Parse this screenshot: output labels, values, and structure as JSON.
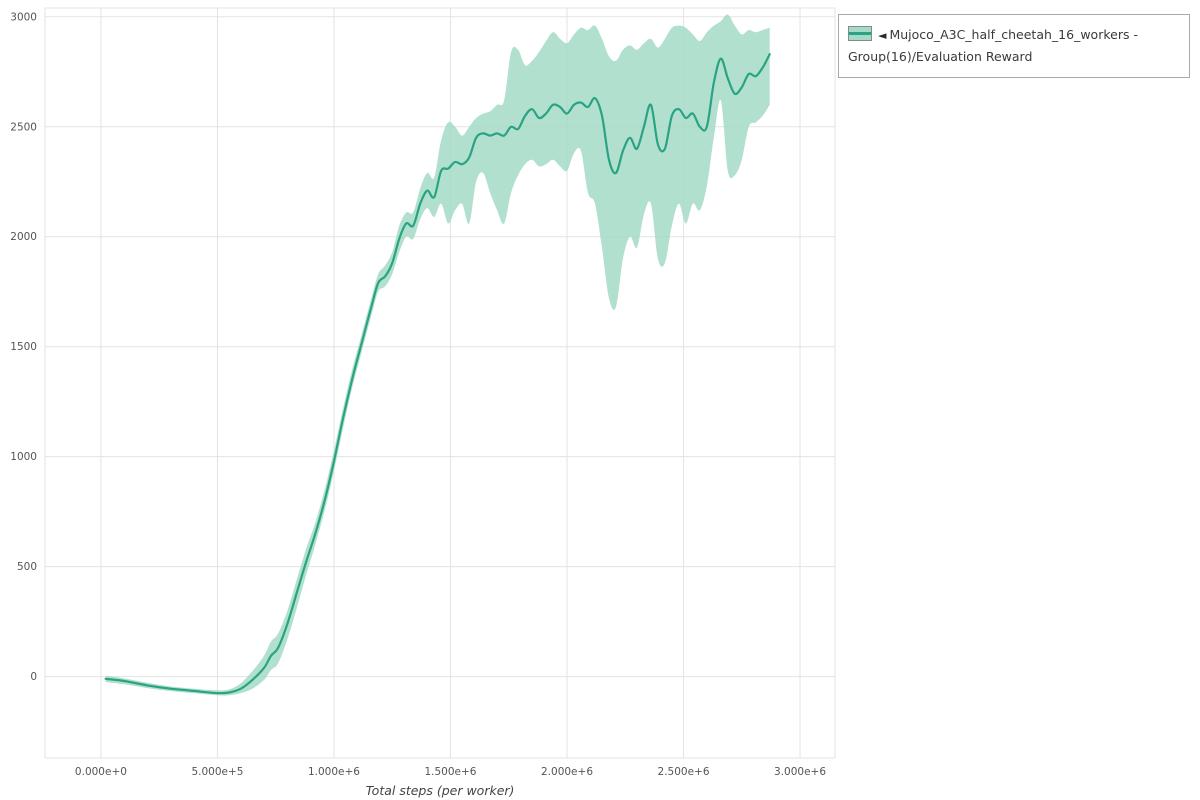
{
  "page": {
    "background": "#ffffff"
  },
  "chart_data": {
    "type": "line",
    "title": "",
    "xlabel": "Total steps (per worker)",
    "ylabel": "",
    "grid": true,
    "legend": {
      "position": "top-right",
      "collapse_marker": "◄",
      "entries": [
        {
          "label": "Mujoco_A3C_half_cheetah_16_workers - Group(16)/Evaluation Reward"
        }
      ]
    },
    "colors": {
      "line": "#29a383",
      "band": "#a4dac6",
      "grid": "#e3e3e3",
      "tick_text": "#555555",
      "axis_title": "#444444"
    },
    "xlim": [
      -240000,
      3150000
    ],
    "ylim": [
      -370,
      3040
    ],
    "x_ticks": {
      "values": [
        0,
        500000,
        1000000,
        1500000,
        2000000,
        2500000,
        3000000
      ],
      "labels": [
        "0.000e+0",
        "5.000e+5",
        "1.000e+6",
        "1.500e+6",
        "2.000e+6",
        "2.500e+6",
        "3.000e+6"
      ]
    },
    "y_ticks": {
      "values": [
        0,
        500,
        1000,
        1500,
        2000,
        2500,
        3000
      ],
      "labels": [
        "0",
        "500",
        "1000",
        "1500",
        "2000",
        "2500",
        "3000"
      ]
    },
    "series": [
      {
        "name": "Mujoco_A3C_half_cheetah_16_workers - Group(16)/Evaluation Reward",
        "x": [
          20000,
          100000,
          200000,
          300000,
          400000,
          500000,
          550000,
          600000,
          650000,
          700000,
          730000,
          760000,
          800000,
          840000,
          880000,
          920000,
          960000,
          1000000,
          1040000,
          1080000,
          1120000,
          1160000,
          1190000,
          1220000,
          1250000,
          1280000,
          1310000,
          1340000,
          1370000,
          1400000,
          1430000,
          1460000,
          1490000,
          1520000,
          1550000,
          1580000,
          1610000,
          1640000,
          1670000,
          1700000,
          1730000,
          1760000,
          1790000,
          1820000,
          1850000,
          1880000,
          1910000,
          1940000,
          1970000,
          2000000,
          2030000,
          2060000,
          2090000,
          2120000,
          2150000,
          2180000,
          2210000,
          2240000,
          2270000,
          2300000,
          2330000,
          2360000,
          2390000,
          2420000,
          2450000,
          2480000,
          2510000,
          2540000,
          2570000,
          2600000,
          2630000,
          2660000,
          2690000,
          2720000,
          2750000,
          2780000,
          2810000,
          2840000,
          2870000
        ],
        "mean": [
          -10,
          -20,
          -40,
          -55,
          -65,
          -75,
          -72,
          -55,
          -15,
          40,
          95,
          130,
          240,
          380,
          520,
          650,
          800,
          980,
          1180,
          1360,
          1520,
          1680,
          1790,
          1820,
          1880,
          1990,
          2060,
          2050,
          2150,
          2210,
          2180,
          2300,
          2310,
          2340,
          2330,
          2360,
          2450,
          2470,
          2460,
          2470,
          2460,
          2500,
          2490,
          2550,
          2580,
          2540,
          2560,
          2600,
          2590,
          2560,
          2600,
          2610,
          2590,
          2630,
          2550,
          2350,
          2290,
          2390,
          2450,
          2400,
          2500,
          2600,
          2420,
          2400,
          2550,
          2580,
          2540,
          2560,
          2500,
          2500,
          2700,
          2810,
          2720,
          2650,
          2680,
          2740,
          2730,
          2770,
          2830
        ],
        "low": [
          -25,
          -35,
          -52,
          -66,
          -76,
          -85,
          -85,
          -75,
          -55,
          -15,
          30,
          60,
          170,
          310,
          460,
          600,
          755,
          935,
          1135,
          1320,
          1480,
          1640,
          1750,
          1775,
          1830,
          1930,
          2000,
          1990,
          2080,
          2130,
          2090,
          2150,
          2060,
          2120,
          2150,
          2060,
          2250,
          2290,
          2200,
          2120,
          2060,
          2200,
          2280,
          2330,
          2350,
          2320,
          2330,
          2350,
          2320,
          2300,
          2380,
          2390,
          2200,
          2150,
          1950,
          1720,
          1680,
          1900,
          2000,
          1950,
          2100,
          2150,
          1900,
          1880,
          2050,
          2150,
          2060,
          2150,
          2120,
          2230,
          2450,
          2620,
          2300,
          2280,
          2350,
          2500,
          2520,
          2550,
          2600
        ],
        "high": [
          5,
          -8,
          -28,
          -45,
          -55,
          -62,
          -58,
          -30,
          25,
          95,
          160,
          195,
          300,
          440,
          580,
          700,
          850,
          1030,
          1225,
          1405,
          1560,
          1720,
          1830,
          1870,
          1930,
          2050,
          2110,
          2110,
          2220,
          2290,
          2270,
          2440,
          2520,
          2500,
          2460,
          2500,
          2540,
          2560,
          2570,
          2600,
          2620,
          2840,
          2850,
          2780,
          2800,
          2840,
          2890,
          2930,
          2900,
          2880,
          2920,
          2950,
          2940,
          2960,
          2900,
          2820,
          2800,
          2850,
          2870,
          2850,
          2880,
          2900,
          2860,
          2900,
          2950,
          2960,
          2950,
          2920,
          2890,
          2930,
          2960,
          2980,
          3010,
          2960,
          2920,
          2940,
          2930,
          2940,
          2950
        ]
      }
    ]
  }
}
